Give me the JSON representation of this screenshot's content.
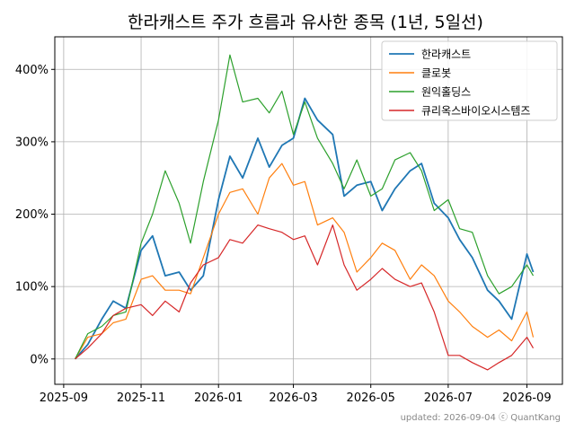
{
  "chart_data": {
    "type": "line",
    "title": "한라캐스트 주가 흐름과 유사한 종목 (1년, 5일선)",
    "xlabel": "",
    "ylabel": "",
    "x_ticks": [
      "2025-09",
      "2025-11",
      "2026-01",
      "2026-03",
      "2026-05",
      "2026-07",
      "2026-09"
    ],
    "y_ticks": [
      "0%",
      "100%",
      "200%",
      "300%",
      "400%"
    ],
    "ylim": [
      -35,
      445
    ],
    "xlim": [
      "2025-08-25",
      "2026-09-29"
    ],
    "grid": true,
    "legend_position": "upper right",
    "x": [
      "2025-09-10",
      "2025-09-20",
      "2025-10-01",
      "2025-10-10",
      "2025-10-20",
      "2025-11-01",
      "2025-11-10",
      "2025-11-20",
      "2025-12-01",
      "2025-12-10",
      "2025-12-20",
      "2026-01-01",
      "2026-01-10",
      "2026-01-20",
      "2026-02-01",
      "2026-02-10",
      "2026-02-20",
      "2026-03-01",
      "2026-03-10",
      "2026-03-20",
      "2026-04-01",
      "2026-04-10",
      "2026-04-20",
      "2026-05-01",
      "2026-05-10",
      "2026-05-20",
      "2026-06-01",
      "2026-06-10",
      "2026-06-20",
      "2026-07-01",
      "2026-07-10",
      "2026-07-20",
      "2026-08-01",
      "2026-08-10",
      "2026-08-20",
      "2026-09-01",
      "2026-09-06"
    ],
    "series": [
      {
        "name": "한라캐스트",
        "color": "#1f77b4",
        "values": [
          0,
          20,
          55,
          80,
          70,
          150,
          170,
          115,
          120,
          95,
          115,
          220,
          280,
          250,
          305,
          265,
          295,
          305,
          360,
          330,
          310,
          225,
          240,
          245,
          205,
          235,
          260,
          270,
          215,
          195,
          165,
          140,
          95,
          80,
          55,
          145,
          120
        ]
      },
      {
        "name": "클로봇",
        "color": "#ff7f0e",
        "values": [
          0,
          30,
          35,
          50,
          55,
          110,
          115,
          95,
          95,
          90,
          140,
          200,
          230,
          235,
          200,
          250,
          270,
          240,
          245,
          185,
          195,
          175,
          120,
          140,
          160,
          150,
          110,
          130,
          115,
          80,
          65,
          45,
          30,
          40,
          25,
          65,
          30
        ]
      },
      {
        "name": "원익홀딩스",
        "color": "#2ca02c",
        "values": [
          0,
          35,
          45,
          60,
          65,
          160,
          200,
          260,
          215,
          160,
          245,
          330,
          420,
          355,
          360,
          340,
          370,
          310,
          355,
          305,
          270,
          235,
          275,
          225,
          235,
          275,
          285,
          260,
          205,
          220,
          180,
          175,
          115,
          90,
          100,
          130,
          115
        ]
      },
      {
        "name": "큐리옥스바이오시스템즈",
        "color": "#d62728",
        "values": [
          0,
          15,
          35,
          60,
          70,
          75,
          60,
          80,
          65,
          105,
          130,
          140,
          165,
          160,
          185,
          180,
          175,
          165,
          170,
          130,
          185,
          130,
          95,
          110,
          125,
          110,
          100,
          105,
          65,
          5,
          5,
          -5,
          -15,
          -5,
          5,
          30,
          15
        ]
      }
    ]
  },
  "footer": "updated: 2026-09-04 ⓒ QuantKang"
}
